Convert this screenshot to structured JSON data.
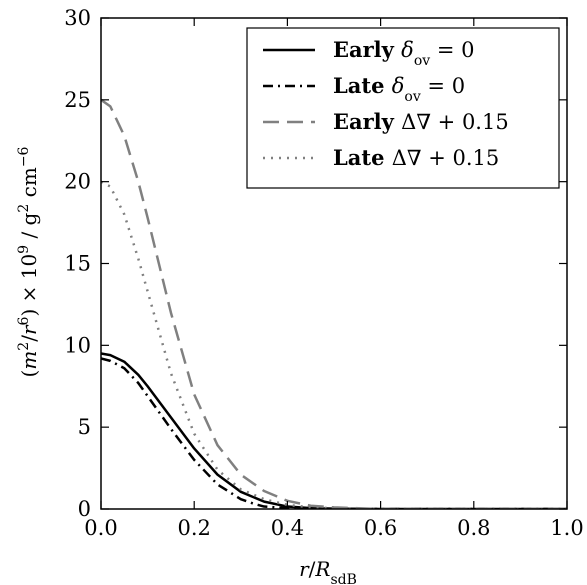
{
  "chart_data": {
    "type": "line",
    "xlabel": "r/R_sdB",
    "ylabel": "(m²/r⁶) × 10⁹ / g² cm⁻⁶",
    "xlim": [
      0.0,
      1.0
    ],
    "ylim": [
      0,
      30
    ],
    "xticks": [
      "0.0",
      "0.2",
      "0.4",
      "0.6",
      "0.8",
      "1.0"
    ],
    "yticks": [
      "0",
      "5",
      "10",
      "15",
      "20",
      "25",
      "30"
    ],
    "legend_position": "top-right",
    "series": [
      {
        "name": "Early δov = 0",
        "style": "solid",
        "color": "#000000",
        "x": [
          0.0,
          0.02,
          0.05,
          0.08,
          0.1,
          0.15,
          0.2,
          0.25,
          0.3,
          0.35,
          0.4,
          0.45,
          0.5,
          0.6,
          0.8,
          1.0
        ],
        "y": [
          9.5,
          9.4,
          9.0,
          8.2,
          7.5,
          5.6,
          3.7,
          2.1,
          1.05,
          0.45,
          0.15,
          0.05,
          0.02,
          0.0,
          0.0,
          0.0
        ]
      },
      {
        "name": "Late δov = 0",
        "style": "dashdot",
        "color": "#000000",
        "x": [
          0.0,
          0.02,
          0.05,
          0.08,
          0.1,
          0.15,
          0.2,
          0.25,
          0.3,
          0.33,
          0.35,
          0.4,
          0.45,
          0.5,
          0.6,
          0.8,
          1.0
        ],
        "y": [
          9.2,
          9.05,
          8.6,
          7.7,
          6.9,
          4.9,
          3.0,
          1.5,
          0.6,
          0.3,
          0.15,
          0.05,
          0.0,
          0.0,
          0.0,
          0.0,
          0.0
        ]
      },
      {
        "name": "Early ΔV + 0.15",
        "style": "dashed",
        "color": "#808080",
        "x": [
          0.0,
          0.02,
          0.05,
          0.08,
          0.1,
          0.15,
          0.2,
          0.25,
          0.3,
          0.35,
          0.4,
          0.45,
          0.5,
          0.6,
          0.8,
          1.0
        ],
        "y": [
          25.0,
          24.6,
          22.8,
          20.0,
          17.8,
          12.0,
          7.0,
          3.9,
          2.1,
          1.1,
          0.5,
          0.2,
          0.1,
          0.0,
          0.0,
          0.0
        ]
      },
      {
        "name": "Late ΔV + 0.15",
        "style": "dotted",
        "color": "#808080",
        "x": [
          0.0,
          0.02,
          0.05,
          0.08,
          0.1,
          0.15,
          0.2,
          0.25,
          0.3,
          0.35,
          0.4,
          0.45,
          0.5,
          0.6,
          0.8,
          1.0
        ],
        "y": [
          20.0,
          19.7,
          18.0,
          15.3,
          13.3,
          8.3,
          4.6,
          2.4,
          1.2,
          0.6,
          0.25,
          0.1,
          0.05,
          0.0,
          0.0,
          0.0
        ]
      }
    ]
  }
}
